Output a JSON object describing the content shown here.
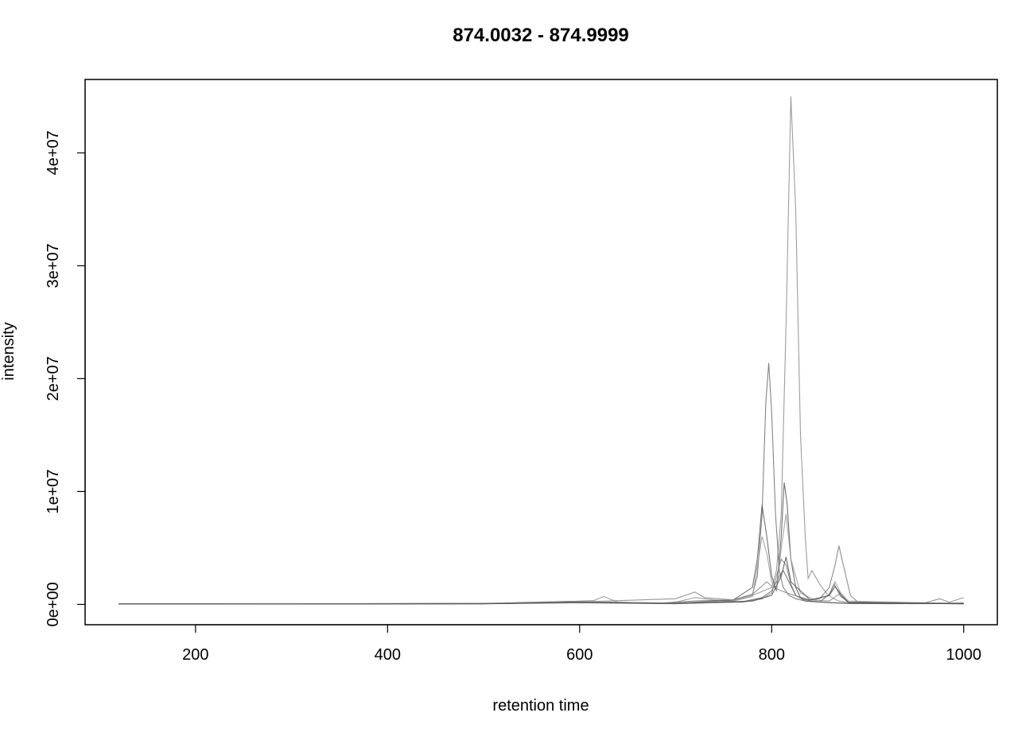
{
  "chart_data": {
    "type": "line",
    "title": "874.0032 - 874.9999",
    "xlabel": "retention time",
    "ylabel": "intensity",
    "xlim": [
      85,
      1035
    ],
    "ylim": [
      -1800000,
      46500000
    ],
    "x_ticks": [
      200,
      400,
      600,
      800,
      1000
    ],
    "x_tick_labels": [
      "200",
      "400",
      "600",
      "800",
      "1000"
    ],
    "y_ticks": [
      0,
      10000000,
      20000000,
      30000000,
      40000000
    ],
    "y_tick_labels": [
      "0e+00",
      "1e+07",
      "2e+07",
      "3e+07",
      "4e+07"
    ],
    "grid": false,
    "legend": "none",
    "line_colors": [
      "#8c8c8c",
      "#6e6e6e",
      "#5a5a5a",
      "#7a7a7a",
      "#999999",
      "#666666",
      "#858585",
      "#4f4f4f"
    ],
    "series": [
      {
        "x": [
          120,
          200,
          300,
          400,
          500,
          560,
          590,
          600,
          615,
          625,
          640,
          680,
          700,
          720,
          740,
          760,
          780,
          800,
          805,
          810,
          815,
          820,
          825,
          830,
          835,
          838,
          842,
          850,
          858,
          865,
          870,
          878,
          890,
          920,
          960,
          1000
        ],
        "y": [
          50000,
          60000,
          40000,
          70000,
          80000,
          120000,
          250000,
          300000,
          350000,
          700000,
          200000,
          100000,
          200000,
          600000,
          400000,
          300000,
          800000,
          1500000,
          3000000,
          8000000,
          25000000,
          45000000,
          35000000,
          15000000,
          6000000,
          2300000,
          3000000,
          1800000,
          900000,
          500000,
          300000,
          200000,
          120000,
          80000,
          100000,
          150000
        ]
      },
      {
        "x": [
          120,
          300,
          500,
          590,
          600,
          620,
          680,
          720,
          760,
          780,
          785,
          790,
          794,
          797,
          800,
          804,
          808,
          812,
          818,
          825,
          835,
          850,
          880,
          920,
          1000
        ],
        "y": [
          40000,
          50000,
          90000,
          280000,
          250000,
          200000,
          90000,
          300000,
          400000,
          900000,
          2500000,
          8000000,
          18000000,
          21400000,
          17000000,
          8000000,
          3000000,
          1500000,
          800000,
          500000,
          300000,
          200000,
          100000,
          60000,
          80000
        ]
      },
      {
        "x": [
          120,
          300,
          500,
          600,
          700,
          760,
          780,
          785,
          790,
          795,
          800,
          805,
          810,
          813,
          816,
          820,
          825,
          830,
          840,
          860,
          880,
          1000
        ],
        "y": [
          60000,
          50000,
          80000,
          250000,
          100000,
          400000,
          1500000,
          4000000,
          8800000,
          6000000,
          2500000,
          1200000,
          6000000,
          10800000,
          9000000,
          4000000,
          1500000,
          600000,
          300000,
          150000,
          80000,
          70000
        ]
      },
      {
        "x": [
          120,
          300,
          500,
          600,
          700,
          770,
          790,
          800,
          805,
          810,
          815,
          820,
          825,
          835,
          850,
          860,
          866,
          870,
          876,
          882,
          890,
          1000
        ],
        "y": [
          50000,
          40000,
          60000,
          200000,
          80000,
          200000,
          500000,
          1000000,
          2500000,
          4000000,
          3500000,
          1800000,
          800000,
          400000,
          500000,
          1500000,
          3500000,
          5200000,
          3000000,
          800000,
          200000,
          90000
        ]
      },
      {
        "x": [
          120,
          300,
          500,
          600,
          700,
          760,
          780,
          790,
          795,
          800,
          805,
          810,
          815,
          820,
          830,
          845,
          860,
          866,
          872,
          880,
          1000
        ],
        "y": [
          45000,
          55000,
          70000,
          220000,
          120000,
          300000,
          700000,
          6000000,
          4500000,
          2000000,
          1200000,
          5000000,
          8000000,
          4000000,
          1000000,
          400000,
          800000,
          2000000,
          1000000,
          300000,
          60000
        ]
      },
      {
        "x": [
          120,
          300,
          500,
          600,
          700,
          770,
          790,
          800,
          808,
          812,
          818,
          825,
          835,
          850,
          860,
          865,
          872,
          880,
          1000
        ],
        "y": [
          40000,
          45000,
          60000,
          180000,
          90000,
          250000,
          600000,
          1200000,
          2500000,
          3000000,
          2000000,
          800000,
          300000,
          200000,
          900000,
          1800000,
          700000,
          200000,
          50000
        ]
      },
      {
        "x": [
          120,
          300,
          500,
          600,
          700,
          720,
          730,
          760,
          780,
          795,
          800,
          810,
          820,
          840,
          860,
          870,
          880,
          960,
          975,
          985,
          1000
        ],
        "y": [
          50000,
          50000,
          70000,
          220000,
          500000,
          1100000,
          600000,
          400000,
          900000,
          2000000,
          1600000,
          1200000,
          900000,
          400000,
          300000,
          900000,
          200000,
          150000,
          500000,
          200000,
          600000
        ]
      },
      {
        "x": [
          120,
          300,
          500,
          600,
          700,
          780,
          800,
          810,
          815,
          820,
          840,
          860,
          866,
          872,
          880,
          1000
        ],
        "y": [
          35000,
          30000,
          50000,
          150000,
          60000,
          300000,
          800000,
          2500000,
          4200000,
          2000000,
          400000,
          800000,
          1600000,
          900000,
          150000,
          50000
        ]
      }
    ]
  }
}
